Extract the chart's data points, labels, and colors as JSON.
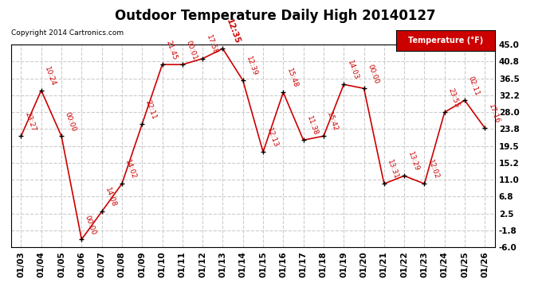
{
  "title": "Outdoor Temperature Daily High 20140127",
  "copyright": "Copyright 2014 Cartronics.com",
  "legend_label": "Temperature (°F)",
  "dates": [
    "01/03",
    "01/04",
    "01/05",
    "01/06",
    "01/07",
    "01/08",
    "01/09",
    "01/10",
    "01/11",
    "01/12",
    "01/13",
    "01/14",
    "01/15",
    "01/16",
    "01/17",
    "01/18",
    "01/19",
    "01/20",
    "01/21",
    "01/22",
    "01/23",
    "01/24",
    "01/25",
    "01/26"
  ],
  "values": [
    22.0,
    33.5,
    22.0,
    -4.0,
    3.0,
    10.0,
    25.0,
    40.0,
    40.0,
    41.5,
    44.0,
    36.0,
    18.0,
    33.0,
    21.0,
    22.0,
    35.0,
    34.0,
    10.0,
    12.0,
    10.0,
    28.0,
    31.0,
    24.0
  ],
  "time_labels": [
    "23:27",
    "10:24",
    "00:00",
    "00:00",
    "14:08",
    "14:02",
    "22:11",
    "21:45",
    "00:01",
    "17:58",
    "12:35",
    "12:39",
    "12:13",
    "15:48",
    "11:38",
    "15:42",
    "14:03",
    "00:00",
    "13:31",
    "13:29",
    "12:02",
    "23:55",
    "02:11",
    "17:16"
  ],
  "ylim_min": -6.0,
  "ylim_max": 45.0,
  "yticks": [
    45.0,
    40.8,
    36.5,
    32.2,
    28.0,
    23.8,
    19.5,
    15.2,
    11.0,
    6.8,
    2.5,
    -1.8,
    -6.0
  ],
  "line_color": "#cc0000",
  "marker_color": "#000000",
  "bg_color": "#ffffff",
  "plot_bg_color": "#ffffff",
  "grid_color": "#cccccc",
  "title_fontsize": 12,
  "label_fontsize": 7.5,
  "annotation_fontsize": 6.5,
  "legend_bg": "#cc0000",
  "legend_fg": "#ffffff"
}
